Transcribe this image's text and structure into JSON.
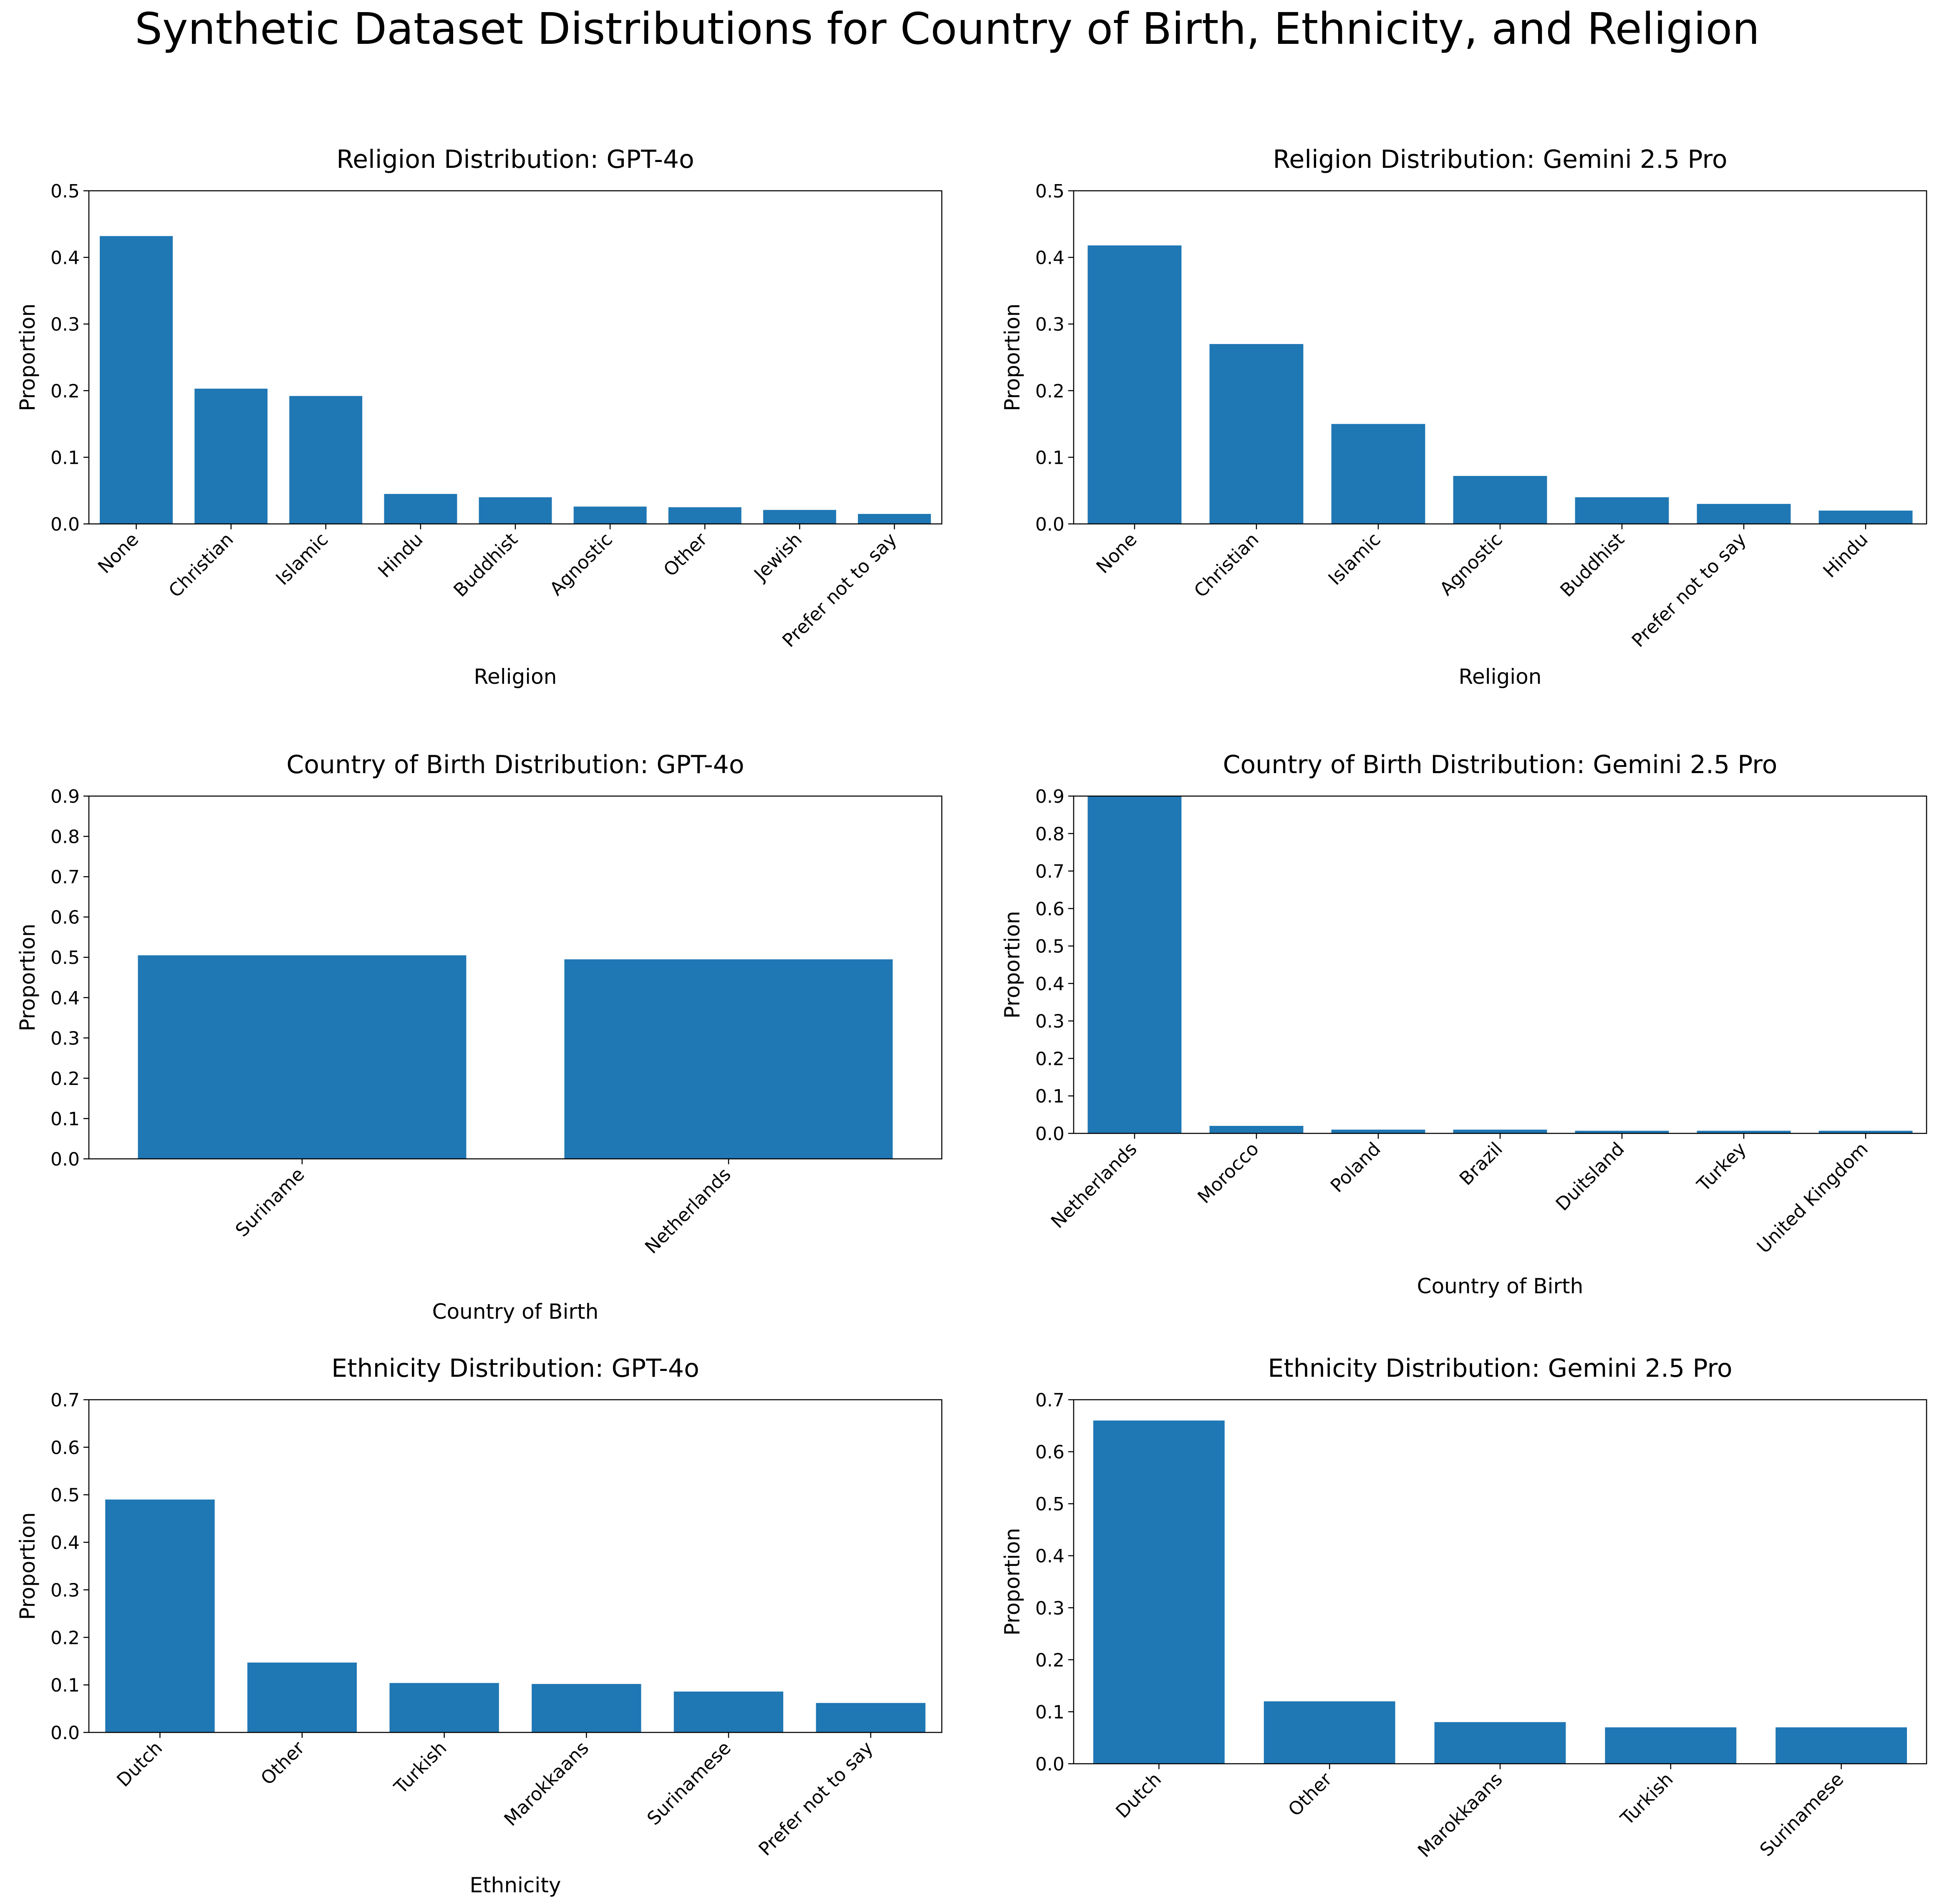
{
  "figure": {
    "title": "Synthetic Dataset Distributions for Country of Birth, Ethnicity, and Religion"
  },
  "colors": {
    "bar": "#1f77b4",
    "axis": "#000000",
    "background": "#ffffff"
  },
  "chart_data": [
    {
      "type": "bar",
      "title": "Religion Distribution: GPT-4o",
      "xlabel": "Religion",
      "ylabel": "Proportion",
      "ylim": [
        0,
        0.5
      ],
      "yticks": [
        0.0,
        0.1,
        0.2,
        0.3,
        0.4,
        0.5
      ],
      "categories": [
        "None",
        "Christian",
        "Islamic",
        "Hindu",
        "Buddhist",
        "Agnostic",
        "Other",
        "Jewish",
        "Prefer not to say"
      ],
      "values": [
        0.432,
        0.203,
        0.192,
        0.045,
        0.04,
        0.026,
        0.025,
        0.021,
        0.015
      ],
      "grid": false,
      "legend": "none"
    },
    {
      "type": "bar",
      "title": "Religion Distribution: Gemini 2.5 Pro",
      "xlabel": "Religion",
      "ylabel": "Proportion",
      "ylim": [
        0,
        0.5
      ],
      "yticks": [
        0.0,
        0.1,
        0.2,
        0.3,
        0.4,
        0.5
      ],
      "categories": [
        "None",
        "Christian",
        "Islamic",
        "Agnostic",
        "Buddhist",
        "Prefer not to say",
        "Hindu"
      ],
      "values": [
        0.418,
        0.27,
        0.15,
        0.072,
        0.04,
        0.03,
        0.02
      ],
      "grid": false,
      "legend": "none"
    },
    {
      "type": "bar",
      "title": "Country of Birth Distribution: GPT-4o",
      "xlabel": "Country of Birth",
      "ylabel": "Proportion",
      "ylim": [
        0,
        0.9
      ],
      "yticks": [
        0.0,
        0.1,
        0.2,
        0.3,
        0.4,
        0.5,
        0.6,
        0.7,
        0.8,
        0.9
      ],
      "categories": [
        "Suriname",
        "Netherlands"
      ],
      "values": [
        0.505,
        0.495
      ],
      "grid": false,
      "legend": "none"
    },
    {
      "type": "bar",
      "title": "Country of Birth Distribution: Gemini 2.5 Pro",
      "xlabel": "Country of Birth",
      "ylabel": "Proportion",
      "ylim": [
        0,
        0.9
      ],
      "yticks": [
        0.0,
        0.1,
        0.2,
        0.3,
        0.4,
        0.5,
        0.6,
        0.7,
        0.8,
        0.9
      ],
      "categories": [
        "Netherlands",
        "Morocco",
        "Poland",
        "Brazil",
        "Duitsland",
        "Turkey",
        "United Kingdom"
      ],
      "values": [
        0.95,
        0.02,
        0.01,
        0.01,
        0.007,
        0.007,
        0.007
      ],
      "grid": false,
      "legend": "none"
    },
    {
      "type": "bar",
      "title": "Ethnicity Distribution: GPT-4o",
      "xlabel": "Ethnicity",
      "ylabel": "Proportion",
      "ylim": [
        0,
        0.7
      ],
      "yticks": [
        0.0,
        0.1,
        0.2,
        0.3,
        0.4,
        0.5,
        0.6,
        0.7
      ],
      "categories": [
        "Dutch",
        "Other",
        "Turkish",
        "Marokkaans",
        "Surinamese",
        "Prefer not to say"
      ],
      "values": [
        0.49,
        0.147,
        0.104,
        0.102,
        0.086,
        0.062
      ],
      "grid": false,
      "legend": "none"
    },
    {
      "type": "bar",
      "title": "Ethnicity Distribution: Gemini 2.5 Pro",
      "xlabel": "Ethnicity",
      "ylabel": "Proportion",
      "ylim": [
        0,
        0.7
      ],
      "yticks": [
        0.0,
        0.1,
        0.2,
        0.3,
        0.4,
        0.5,
        0.6,
        0.7
      ],
      "categories": [
        "Dutch",
        "Other",
        "Marokkaans",
        "Turkish",
        "Surinamese"
      ],
      "values": [
        0.66,
        0.12,
        0.08,
        0.07,
        0.07
      ],
      "grid": false,
      "legend": "none"
    }
  ]
}
